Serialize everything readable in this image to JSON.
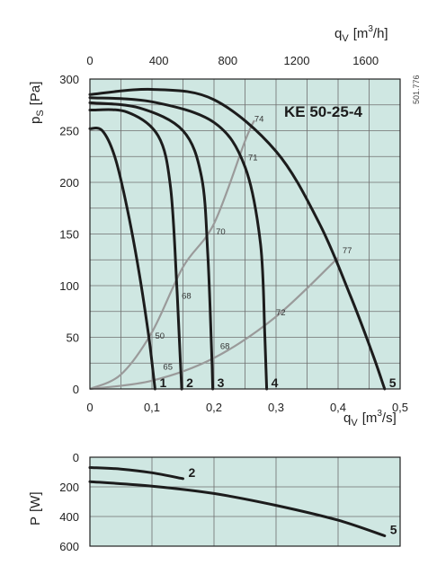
{
  "colors": {
    "plot_bg": "#cfe7e2",
    "grid": "#6f6f6f",
    "curve": "#1c1c1c",
    "system": "#9a9a9a",
    "axis": "#222222"
  },
  "chart_data": [
    {
      "type": "line",
      "title": "KE  50-25-4",
      "side_code": "501.776",
      "xlabel": "q",
      "xlabel_sub": "V",
      "xlabel_unit": "[m",
      "xlabel_sup": "3",
      "xlabel_unit_end": "/s]",
      "ylabel": "p",
      "ylabel_sub": "S",
      "ylabel_unit": "[Pa]",
      "xlim": [
        0,
        0.5
      ],
      "ylim": [
        0,
        300
      ],
      "xticks": [
        "0",
        "0,1",
        "0,2",
        "0,3",
        "0,4",
        "0,5"
      ],
      "yticks": [
        "0",
        "50",
        "100",
        "150",
        "200",
        "250",
        "300"
      ],
      "top_axis": {
        "label": "q",
        "label_sub": "V",
        "unit": "[m",
        "unit_sup": "3",
        "unit_end": "/h]",
        "ticks": [
          "0",
          "400",
          "800",
          "1200",
          "1600"
        ],
        "tick_values": [
          0,
          400,
          800,
          1200,
          1600
        ]
      },
      "grid": true,
      "series": [
        {
          "label": "1",
          "x": [
            0,
            0.02,
            0.04,
            0.06,
            0.08,
            0.095,
            0.103,
            0.105
          ],
          "y": [
            252,
            250,
            225,
            175,
            110,
            50,
            10,
            0
          ]
        },
        {
          "label": "2",
          "x": [
            0,
            0.06,
            0.11,
            0.13,
            0.14,
            0.146,
            0.148
          ],
          "y": [
            270,
            268,
            245,
            195,
            100,
            25,
            0
          ]
        },
        {
          "label": "3",
          "x": [
            0,
            0.08,
            0.15,
            0.18,
            0.19,
            0.196,
            0.198
          ],
          "y": [
            277,
            272,
            250,
            205,
            130,
            40,
            0
          ]
        },
        {
          "label": "4",
          "x": [
            0,
            0.1,
            0.2,
            0.25,
            0.275,
            0.282,
            0.285
          ],
          "y": [
            282,
            278,
            258,
            215,
            140,
            50,
            0
          ]
        },
        {
          "label": "5",
          "x": [
            0,
            0.1,
            0.2,
            0.3,
            0.37,
            0.42,
            0.455,
            0.475
          ],
          "y": [
            285,
            290,
            280,
            230,
            160,
            90,
            35,
            0
          ]
        }
      ],
      "system_curves": [
        {
          "x": [
            0,
            0.05,
            0.1,
            0.15,
            0.2,
            0.25,
            0.265
          ],
          "y": [
            0,
            14,
            55,
            118,
            160,
            240,
            260
          ]
        },
        {
          "x": [
            0,
            0.1,
            0.2,
            0.3,
            0.4
          ],
          "y": [
            0,
            8,
            30,
            70,
            127
          ]
        }
      ],
      "point_labels": [
        {
          "text": "74",
          "x": 0.265,
          "y": 262
        },
        {
          "text": "71",
          "x": 0.255,
          "y": 225
        },
        {
          "text": "70",
          "x": 0.203,
          "y": 153
        },
        {
          "text": "68",
          "x": 0.148,
          "y": 91
        },
        {
          "text": "50",
          "x": 0.105,
          "y": 52
        },
        {
          "text": "65",
          "x": 0.118,
          "y": 22
        },
        {
          "text": "68",
          "x": 0.21,
          "y": 42
        },
        {
          "text": "72",
          "x": 0.3,
          "y": 75
        },
        {
          "text": "77",
          "x": 0.407,
          "y": 135
        }
      ]
    },
    {
      "type": "line",
      "ylabel": "P",
      "ylabel_unit": "[W]",
      "xlabel": "q",
      "xlabel_sub": "V",
      "xlabel_unit": "[m",
      "xlabel_sup": "3",
      "xlabel_unit_end": "/s]",
      "xlim": [
        0,
        0.5
      ],
      "ylim": [
        0,
        600
      ],
      "yticks": [
        "0",
        "200",
        "400",
        "600"
      ],
      "ytick_values": [
        0,
        200,
        400,
        600
      ],
      "grid": true,
      "series": [
        {
          "label": "2",
          "x": [
            0,
            0.05,
            0.1,
            0.15
          ],
          "y": [
            70,
            80,
            105,
            145
          ]
        },
        {
          "label": "5",
          "x": [
            0,
            0.1,
            0.2,
            0.3,
            0.4,
            0.475
          ],
          "y": [
            165,
            195,
            245,
            325,
            425,
            530
          ]
        }
      ]
    }
  ]
}
